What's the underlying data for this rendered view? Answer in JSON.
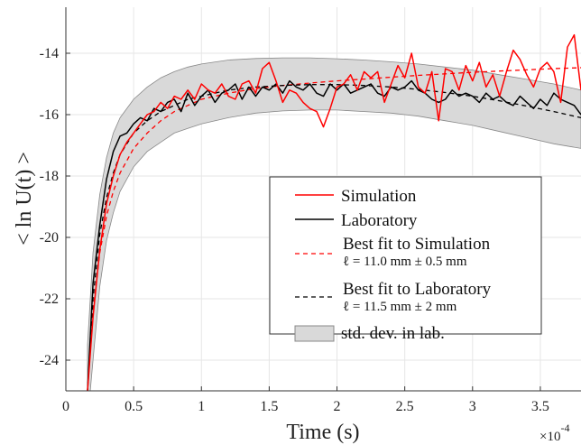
{
  "chart_data": {
    "type": "line",
    "xlabel": "Time (s)",
    "ylabel": "< ln U(t) >",
    "x_multiplier_base": "×10",
    "x_multiplier_exp": "-4",
    "xlim": [
      0,
      0.00038
    ],
    "ylim": [
      -25,
      -12.5
    ],
    "xticks": [
      0,
      5e-05,
      0.0001,
      0.00015,
      0.0002,
      0.00025,
      0.0003,
      0.00035
    ],
    "xtick_labels": [
      "0",
      "0.5",
      "1",
      "1.5",
      "2",
      "2.5",
      "3",
      "3.5"
    ],
    "yticks": [
      -24,
      -22,
      -20,
      -18,
      -16,
      -14
    ],
    "ytick_labels": [
      "-24",
      "-22",
      "-20",
      "-18",
      "-16",
      "-14"
    ],
    "grid": true,
    "legend_position": "right",
    "colors": {
      "simulation": "#ff0000",
      "laboratory": "#000000",
      "band": "#d9d9d9",
      "band_edge": "#888888"
    },
    "series": [
      {
        "name": "Simulation",
        "style": "solid",
        "color": "#ff0000",
        "x": [
          1.6e-05,
          2e-05,
          2.5e-05,
          3e-05,
          3.5e-05,
          4e-05,
          4.5e-05,
          5e-05,
          5.5e-05,
          6e-05,
          6.5e-05,
          7e-05,
          7.5e-05,
          8e-05,
          8.5e-05,
          9e-05,
          9.5e-05,
          0.0001,
          0.000105,
          0.00011,
          0.000115,
          0.00012,
          0.000125,
          0.00013,
          0.000135,
          0.00014,
          0.000145,
          0.00015,
          0.000155,
          0.00016,
          0.000165,
          0.00017,
          0.000175,
          0.00018,
          0.000185,
          0.00019,
          0.000195,
          0.0002,
          0.000205,
          0.00021,
          0.000215,
          0.00022,
          0.000225,
          0.00023,
          0.000235,
          0.00024,
          0.000245,
          0.00025,
          0.000255,
          0.00026,
          0.000265,
          0.00027,
          0.000275,
          0.00028,
          0.000285,
          0.00029,
          0.000295,
          0.0003,
          0.000305,
          0.00031,
          0.000315,
          0.00032,
          0.000325,
          0.00033,
          0.000335,
          0.00034,
          0.000345,
          0.00035,
          0.000355,
          0.00036,
          0.000365,
          0.00037,
          0.000375,
          0.00038
        ],
        "values": [
          -25.0,
          -22.6,
          -20.4,
          -18.9,
          -18.0,
          -17.3,
          -16.9,
          -16.6,
          -16.3,
          -16.0,
          -15.9,
          -15.6,
          -15.8,
          -15.4,
          -15.5,
          -15.2,
          -15.5,
          -15.0,
          -15.2,
          -15.3,
          -15.0,
          -15.4,
          -15.5,
          -15.0,
          -14.9,
          -15.3,
          -14.5,
          -14.3,
          -14.9,
          -15.6,
          -15.2,
          -15.3,
          -15.6,
          -15.8,
          -15.9,
          -16.4,
          -15.8,
          -15.1,
          -15.0,
          -14.7,
          -15.2,
          -14.6,
          -14.8,
          -14.6,
          -15.6,
          -15.0,
          -14.4,
          -14.8,
          -14.0,
          -15.1,
          -15.3,
          -14.6,
          -16.2,
          -14.5,
          -14.6,
          -15.2,
          -14.4,
          -14.9,
          -14.3,
          -15.1,
          -14.7,
          -15.4,
          -14.6,
          -13.9,
          -14.2,
          -14.7,
          -15.1,
          -14.5,
          -14.3,
          -14.6,
          -15.6,
          -13.8,
          -13.4,
          -15.2
        ]
      },
      {
        "name": "Laboratory",
        "style": "solid",
        "color": "#000000",
        "x": [
          1.6e-05,
          2e-05,
          2.5e-05,
          3e-05,
          3.5e-05,
          4e-05,
          4.5e-05,
          5e-05,
          5.5e-05,
          6e-05,
          6.5e-05,
          7e-05,
          7.5e-05,
          8e-05,
          8.5e-05,
          9e-05,
          9.5e-05,
          0.0001,
          0.000105,
          0.00011,
          0.000115,
          0.00012,
          0.000125,
          0.00013,
          0.000135,
          0.00014,
          0.000145,
          0.00015,
          0.000155,
          0.00016,
          0.000165,
          0.00017,
          0.000175,
          0.00018,
          0.000185,
          0.00019,
          0.000195,
          0.0002,
          0.000205,
          0.00021,
          0.000215,
          0.00022,
          0.000225,
          0.00023,
          0.000235,
          0.00024,
          0.000245,
          0.00025,
          0.000255,
          0.00026,
          0.000265,
          0.00027,
          0.000275,
          0.00028,
          0.000285,
          0.00029,
          0.000295,
          0.0003,
          0.000305,
          0.00031,
          0.000315,
          0.00032,
          0.000325,
          0.00033,
          0.000335,
          0.00034,
          0.000345,
          0.00035,
          0.000355,
          0.00036,
          0.000365,
          0.00037,
          0.000375,
          0.00038
        ],
        "values": [
          -25.0,
          -21.5,
          -19.6,
          -18.1,
          -17.2,
          -16.7,
          -16.6,
          -16.3,
          -16.1,
          -16.2,
          -15.8,
          -15.9,
          -15.6,
          -15.5,
          -15.9,
          -15.3,
          -15.7,
          -15.4,
          -15.2,
          -15.6,
          -15.3,
          -15.2,
          -15.0,
          -15.5,
          -15.1,
          -15.4,
          -15.1,
          -15.2,
          -15.0,
          -15.3,
          -14.9,
          -15.1,
          -15.2,
          -15.0,
          -15.3,
          -15.4,
          -15.0,
          -15.2,
          -15.0,
          -15.3,
          -15.2,
          -15.1,
          -15.0,
          -15.3,
          -15.4,
          -15.1,
          -15.2,
          -15.1,
          -14.9,
          -15.2,
          -15.3,
          -15.5,
          -15.6,
          -15.5,
          -15.2,
          -15.4,
          -15.3,
          -15.4,
          -15.6,
          -15.3,
          -15.5,
          -15.4,
          -15.6,
          -15.7,
          -15.4,
          -15.6,
          -15.8,
          -15.5,
          -15.7,
          -15.3,
          -15.5,
          -15.6,
          -15.7,
          -16.0
        ]
      },
      {
        "name": "Best fit to Simulation",
        "sublabel": "ℓ = 11.0 mm ± 0.5 mm",
        "style": "dashed",
        "color": "#ff0000",
        "x": [
          1.6e-05,
          2e-05,
          2.5e-05,
          3e-05,
          3.5e-05,
          4e-05,
          5e-05,
          6e-05,
          7e-05,
          8e-05,
          9e-05,
          0.0001,
          0.00012,
          0.00014,
          0.00016,
          0.00018,
          0.0002,
          0.00022,
          0.00024,
          0.00026,
          0.00028,
          0.0003,
          0.00032,
          0.00034,
          0.00036,
          0.00038
        ],
        "values": [
          -25.0,
          -22.4,
          -20.5,
          -19.3,
          -18.5,
          -17.9,
          -17.1,
          -16.6,
          -16.2,
          -15.9,
          -15.7,
          -15.5,
          -15.3,
          -15.15,
          -15.05,
          -14.97,
          -14.9,
          -14.84,
          -14.78,
          -14.72,
          -14.67,
          -14.62,
          -14.58,
          -14.54,
          -14.5,
          -14.47
        ]
      },
      {
        "name": "Best fit to Laboratory",
        "sublabel": "ℓ = 11.5 mm ± 2 mm",
        "style": "dashed",
        "color": "#000000",
        "x": [
          1.6e-05,
          2e-05,
          2.5e-05,
          3e-05,
          3.5e-05,
          4e-05,
          5e-05,
          6e-05,
          7e-05,
          8e-05,
          9e-05,
          0.0001,
          0.00012,
          0.00014,
          0.00016,
          0.00018,
          0.0002,
          0.00022,
          0.00024,
          0.00026,
          0.00028,
          0.0003,
          0.00032,
          0.00034,
          0.00036,
          0.00038
        ],
        "values": [
          -25.0,
          -22.0,
          -19.9,
          -18.7,
          -17.9,
          -17.3,
          -16.6,
          -16.2,
          -15.9,
          -15.7,
          -15.5,
          -15.4,
          -15.2,
          -15.1,
          -15.05,
          -15.02,
          -15.02,
          -15.05,
          -15.1,
          -15.18,
          -15.28,
          -15.4,
          -15.55,
          -15.72,
          -15.9,
          -16.1
        ]
      }
    ],
    "band": {
      "name": "std. dev. in lab.",
      "x": [
        1.6e-05,
        2e-05,
        2.5e-05,
        3e-05,
        3.5e-05,
        4e-05,
        5e-05,
        6e-05,
        7e-05,
        8e-05,
        9e-05,
        0.0001,
        0.00012,
        0.00014,
        0.00016,
        0.00018,
        0.0002,
        0.00022,
        0.00024,
        0.00026,
        0.00028,
        0.0003,
        0.00032,
        0.00034,
        0.00036,
        0.00038
      ],
      "upper": [
        -23.5,
        -20.5,
        -18.6,
        -17.4,
        -16.6,
        -16.1,
        -15.5,
        -15.1,
        -14.8,
        -14.6,
        -14.45,
        -14.35,
        -14.22,
        -14.17,
        -14.15,
        -14.15,
        -14.18,
        -14.22,
        -14.28,
        -14.35,
        -14.45,
        -14.55,
        -14.7,
        -14.85,
        -15.0,
        -15.2
      ],
      "lower": [
        -26.0,
        -24.0,
        -21.6,
        -20.1,
        -19.2,
        -18.5,
        -17.7,
        -17.2,
        -16.9,
        -16.6,
        -16.45,
        -16.3,
        -16.1,
        -15.95,
        -15.88,
        -15.85,
        -15.85,
        -15.9,
        -15.95,
        -16.05,
        -16.2,
        -16.35,
        -16.55,
        -16.75,
        -16.95,
        -17.1
      ]
    }
  }
}
